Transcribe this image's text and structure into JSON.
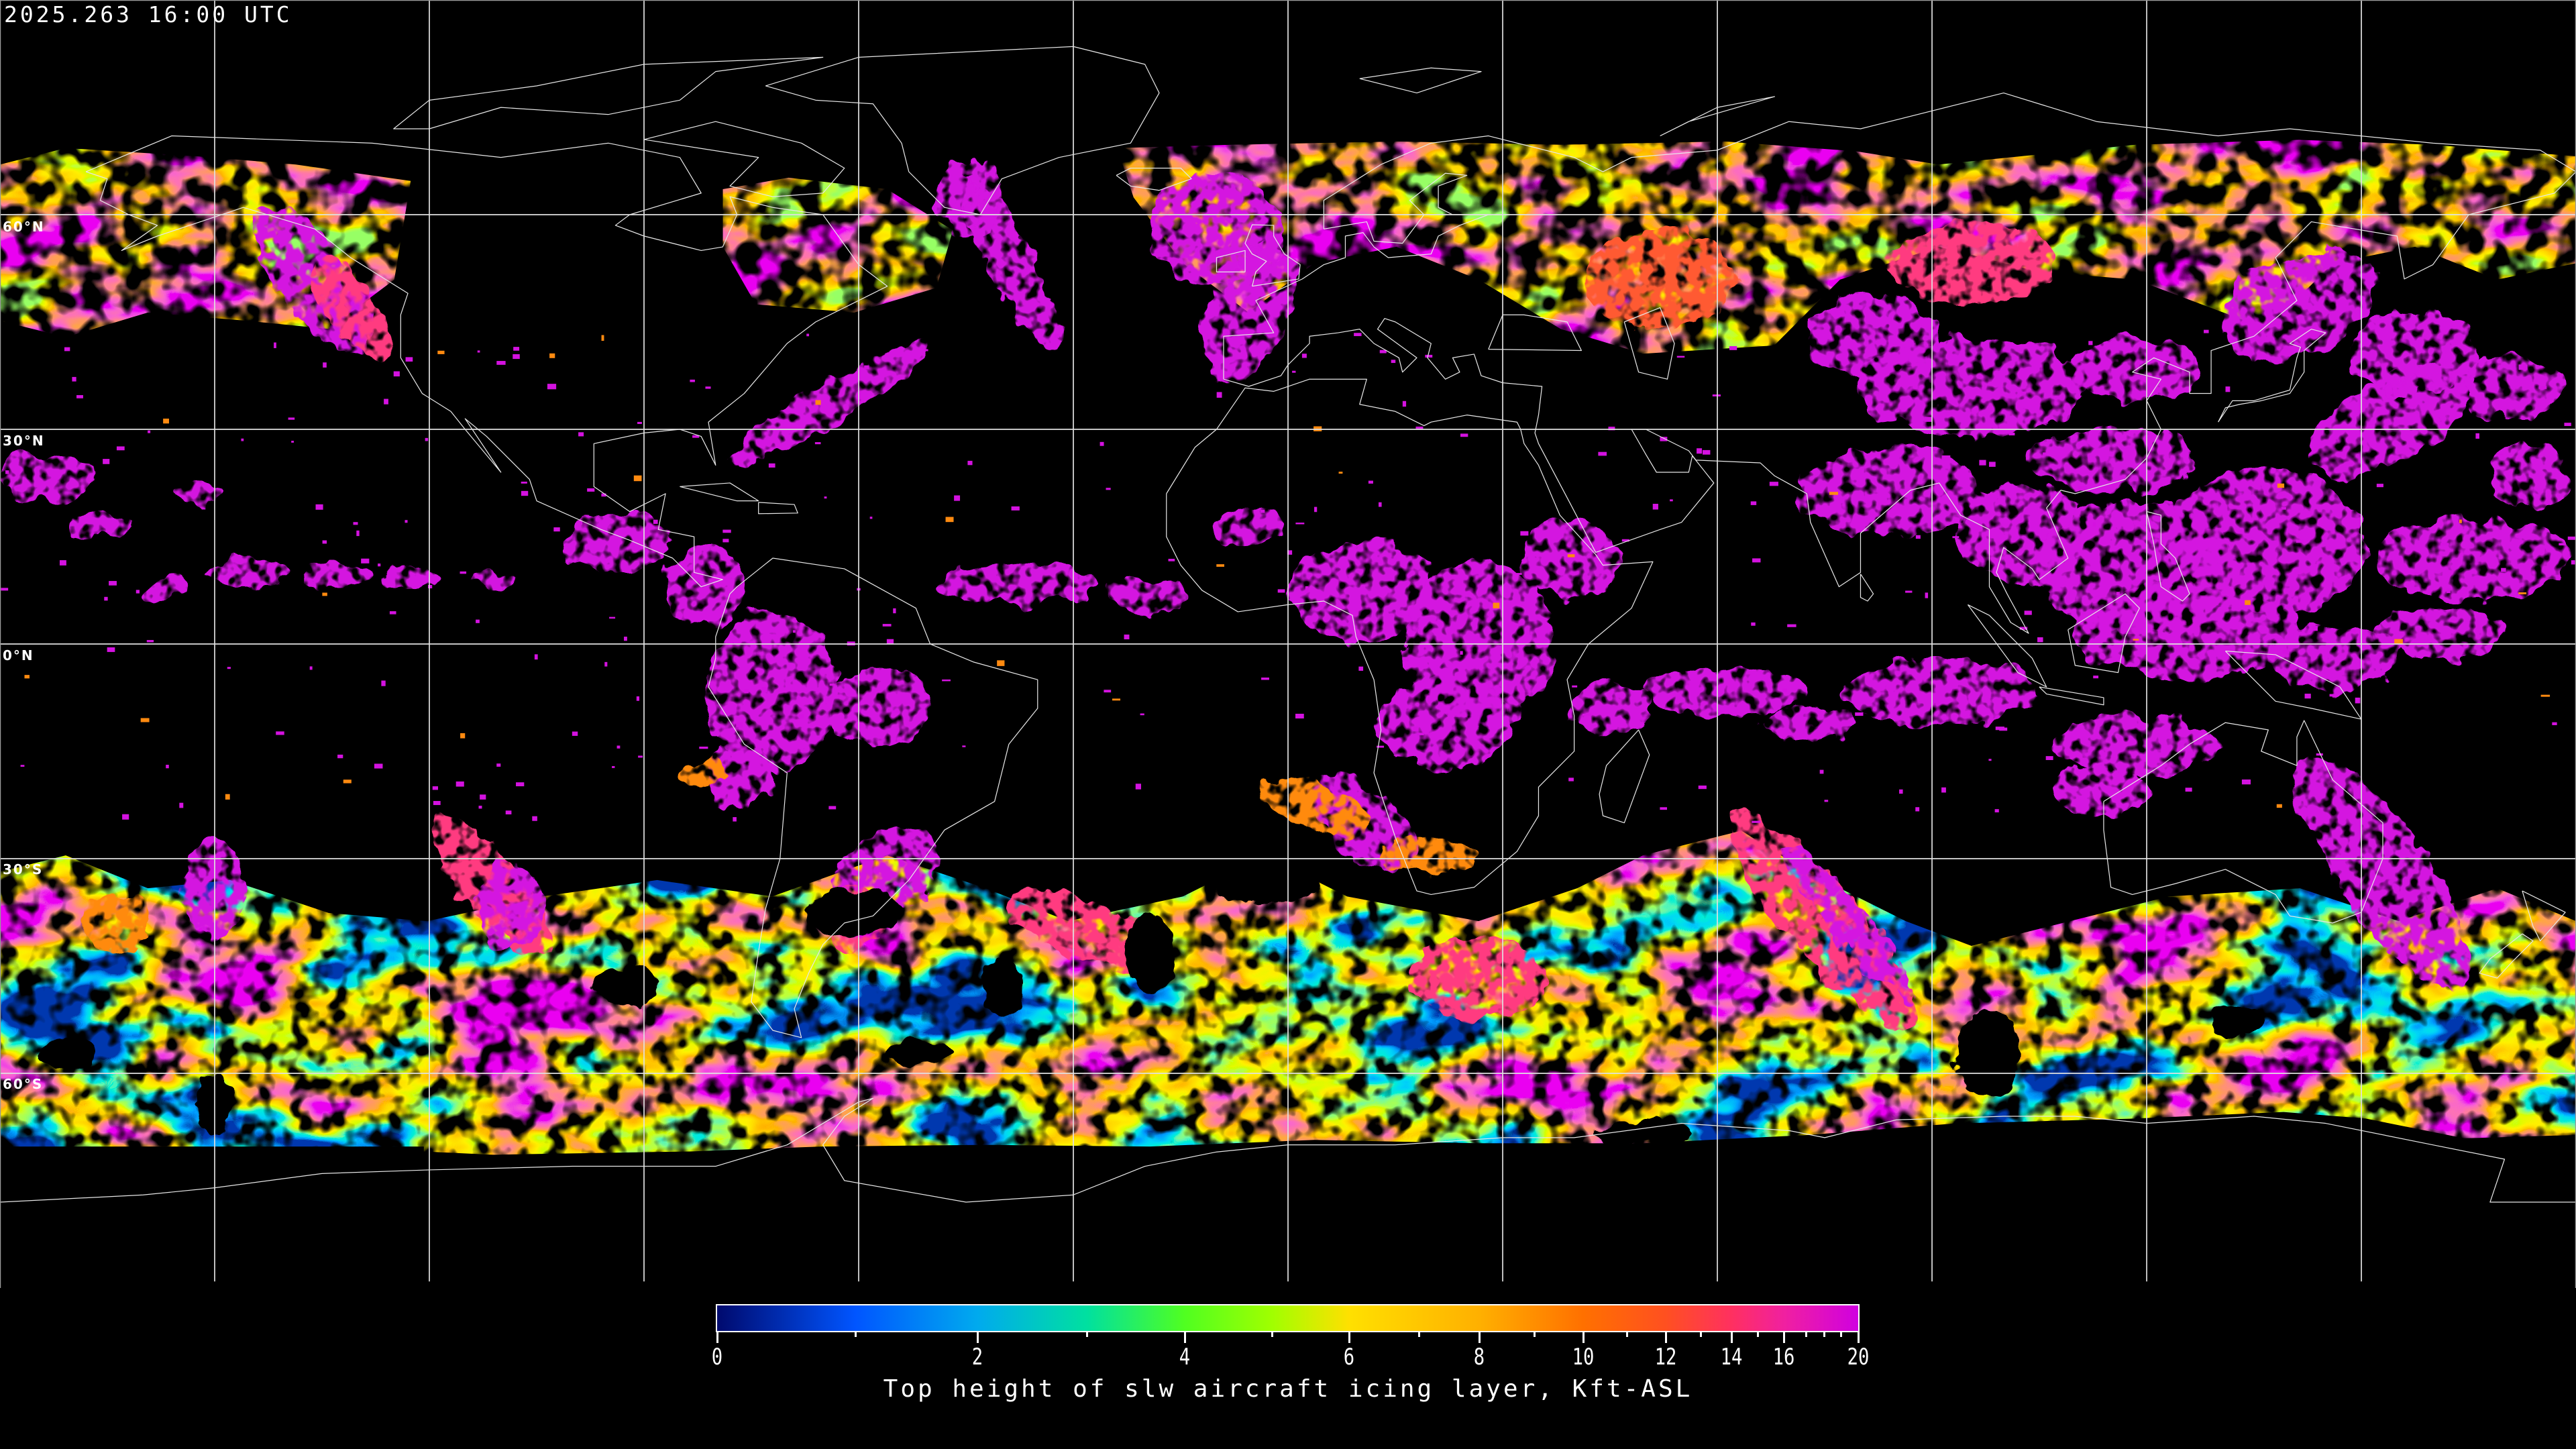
{
  "header": {
    "timestamp": "2025.263 16:00 UTC"
  },
  "map": {
    "projection": "equirectangular",
    "graticule_spacing_deg": 30,
    "lat_labels": [
      "60°N",
      "30°N",
      "0°N",
      "30°S",
      "60°S"
    ],
    "lat_values": [
      60,
      30,
      0,
      -30,
      -60
    ],
    "background": "#000000",
    "gridline_color": "#e0e0e0",
    "coastline_color": "#e6e6e6"
  },
  "colorbar": {
    "title": "Top height of slw aircraft icing layer, Kft-ASL",
    "range": [
      0,
      20
    ],
    "major_ticks": [
      "0",
      "2",
      "4",
      "6",
      "8",
      "10",
      "12",
      "14",
      "16",
      "20"
    ],
    "minor_ticks": [
      1,
      3,
      5,
      7,
      9,
      11,
      13,
      15,
      17,
      18,
      19
    ],
    "colormap": [
      {
        "value": 0,
        "color": "#000a6e"
      },
      {
        "value": 1,
        "color": "#0055ff"
      },
      {
        "value": 2,
        "color": "#00aaee"
      },
      {
        "value": 3,
        "color": "#00e0a0"
      },
      {
        "value": 4,
        "color": "#50ff20"
      },
      {
        "value": 5,
        "color": "#a0ff00"
      },
      {
        "value": 6,
        "color": "#ffe000"
      },
      {
        "value": 8,
        "color": "#ffb000"
      },
      {
        "value": 10,
        "color": "#ff7000"
      },
      {
        "value": 12,
        "color": "#ff5020"
      },
      {
        "value": 14,
        "color": "#ff3060"
      },
      {
        "value": 16,
        "color": "#f020a0"
      },
      {
        "value": 20,
        "color": "#d000e0"
      }
    ]
  }
}
